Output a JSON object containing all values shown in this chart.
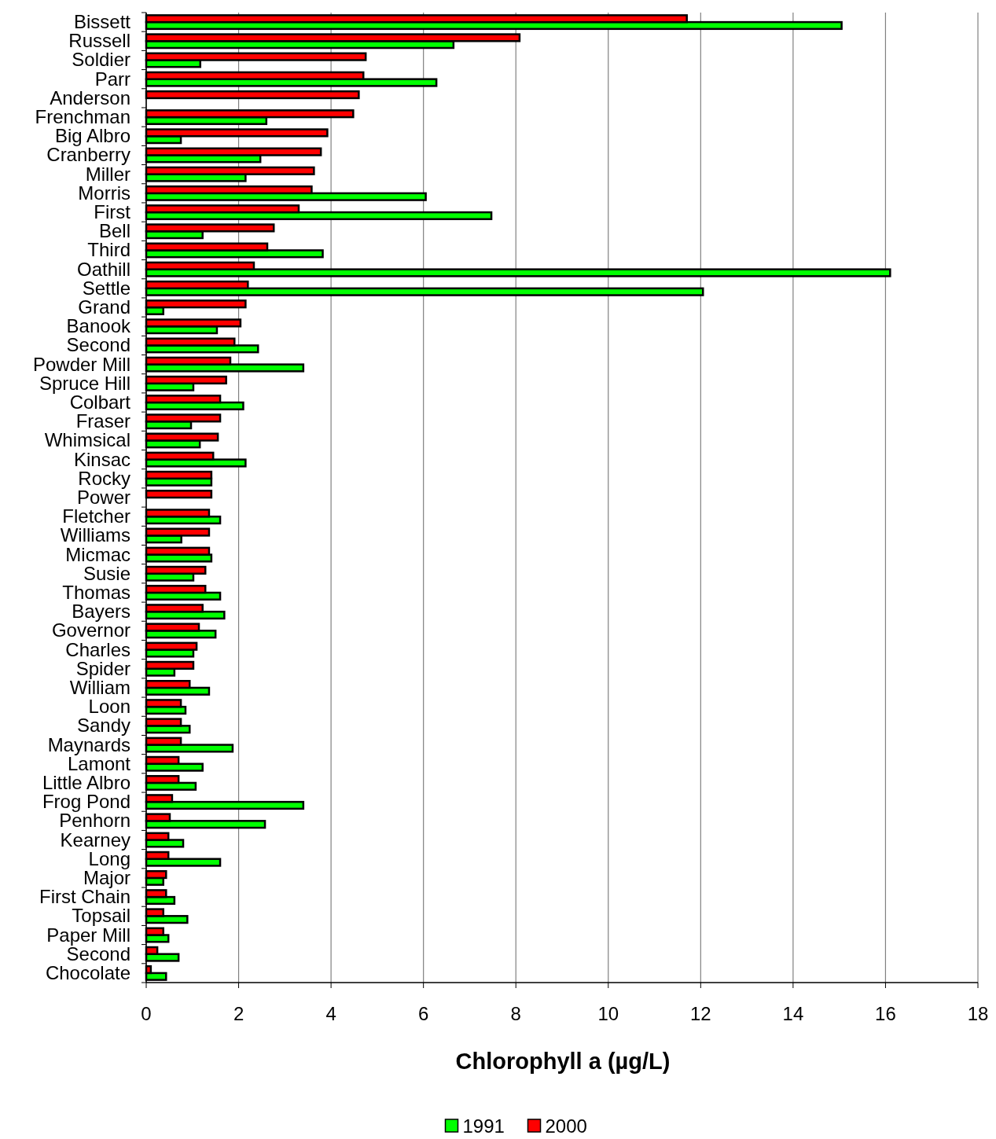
{
  "chart_data": {
    "type": "bar",
    "orientation": "horizontal",
    "xlabel": "Chlorophyll a (µg/L)",
    "categories": [
      "Bissett",
      "Russell",
      "Soldier",
      "Parr",
      "Anderson",
      "Frenchman",
      "Big Albro",
      "Cranberry",
      "Miller",
      "Morris",
      "First",
      "Bell",
      "Third",
      "Oathill",
      "Settle",
      "Grand",
      "Banook",
      "Second",
      "Powder Mill",
      "Spruce Hill",
      "Colbart",
      "Fraser",
      "Whimsical",
      "Kinsac",
      "Rocky",
      "Power",
      "Fletcher",
      "Williams",
      "Micmac",
      "Susie",
      "Thomas",
      "Bayers",
      "Governor",
      "Charles",
      "Spider",
      "William",
      "Loon",
      "Sandy",
      "Maynards",
      "Lamont",
      "Little Albro",
      "Frog Pond",
      "Penhorn",
      "Kearney",
      "Long",
      "Major",
      "First Chain",
      "Topsail",
      "Paper Mill",
      "Second",
      "Chocolate"
    ],
    "series": [
      {
        "name": "1991",
        "color": "#00ff00",
        "values": [
          15.05,
          6.65,
          1.17,
          6.28,
          null,
          2.6,
          0.75,
          2.47,
          2.15,
          6.05,
          7.47,
          1.22,
          3.82,
          16.1,
          12.05,
          0.37,
          1.53,
          2.42,
          3.4,
          1.02,
          2.1,
          0.97,
          1.16,
          2.15,
          1.41,
          null,
          1.6,
          0.76,
          1.41,
          1.02,
          1.6,
          1.69,
          1.5,
          1.02,
          0.61,
          1.36,
          0.85,
          0.94,
          1.87,
          1.22,
          1.07,
          3.4,
          2.57,
          0.8,
          1.6,
          0.37,
          0.61,
          0.89,
          0.48,
          0.7,
          0.43
        ]
      },
      {
        "name": "2000",
        "color": "#ff0000",
        "values": [
          11.7,
          8.08,
          4.75,
          4.7,
          4.6,
          4.48,
          3.92,
          3.78,
          3.63,
          3.58,
          3.3,
          2.76,
          2.62,
          2.33,
          2.2,
          2.15,
          2.04,
          1.91,
          1.82,
          1.73,
          1.6,
          1.6,
          1.55,
          1.45,
          1.41,
          1.41,
          1.36,
          1.36,
          1.36,
          1.28,
          1.28,
          1.22,
          1.14,
          1.09,
          1.02,
          0.94,
          0.75,
          0.75,
          0.75,
          0.7,
          0.7,
          0.56,
          0.51,
          0.48,
          0.48,
          0.43,
          0.43,
          0.37,
          0.37,
          0.24,
          0.1
        ]
      }
    ],
    "xlim": [
      0,
      18
    ],
    "xticks": [
      0,
      2,
      4,
      6,
      8,
      10,
      12,
      14,
      16,
      18
    ],
    "grid": "x",
    "legend": "bottom"
  }
}
